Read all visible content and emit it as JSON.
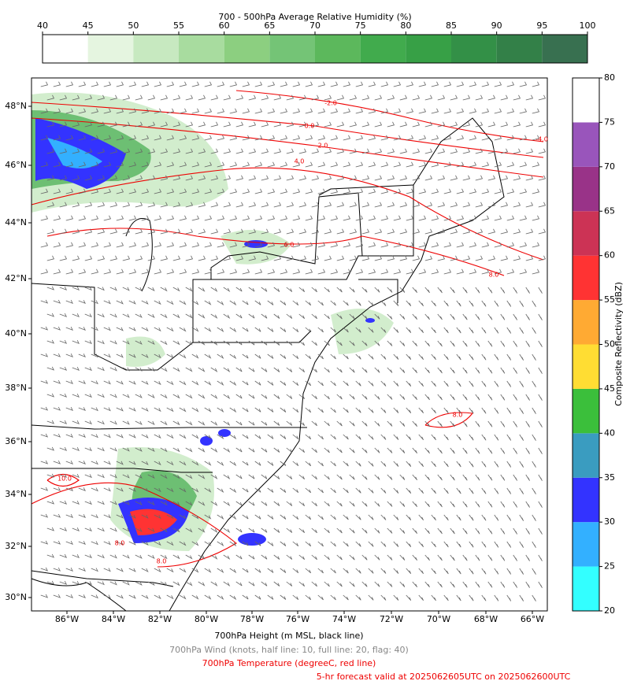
{
  "humidity_colorbar": {
    "title": "700 - 500hPa Average Relative Humidity (%)",
    "ticks": [
      40,
      45,
      50,
      55,
      60,
      65,
      70,
      75,
      80,
      85,
      90,
      95,
      100
    ],
    "colors": [
      "#ffffff",
      "#e5f5e0",
      "#c7e9c0",
      "#a8dc9f",
      "#8ccf80",
      "#74c476",
      "#5cb85c",
      "#41ab4d",
      "#37a046",
      "#339047",
      "#338048",
      "#387050"
    ]
  },
  "reflectivity_colorbar": {
    "label": "Composite Reflectivity (dBZ)",
    "ticks": [
      20,
      25,
      30,
      35,
      40,
      45,
      50,
      55,
      60,
      65,
      70,
      75,
      80
    ],
    "colors": [
      "#33ffff",
      "#33b0ff",
      "#3333ff",
      "#3a9cc0",
      "#3bbf3b",
      "#ffdd33",
      "#ffaa33",
      "#ff3333",
      "#cc3355",
      "#993388",
      "#9955bb",
      "#ffffff"
    ]
  },
  "map": {
    "lat_labels": [
      "48°N",
      "46°N",
      "44°N",
      "42°N",
      "40°N",
      "38°N",
      "36°N",
      "34°N",
      "32°N",
      "30°N"
    ],
    "lon_labels": [
      "86°W",
      "84°W",
      "82°W",
      "80°W",
      "78°W",
      "76°W",
      "74°W",
      "72°W",
      "70°W",
      "68°W",
      "66°W"
    ],
    "contour_labels": [
      "-2.0",
      "0.0",
      "2.0",
      "4.0",
      "-4.0",
      "6.0",
      "8.0",
      "8.0",
      "10.0",
      "8.0",
      "8.0"
    ]
  },
  "captions": [
    "700hPa Height (m MSL, black line)",
    "700hPa Wind (knots, half line: 10, full line: 20, flag: 40)",
    "700hPa Temperature (degreeC, red line)",
    "5-hr forecast valid at 2025062605UTC on 2025062600UTC"
  ]
}
